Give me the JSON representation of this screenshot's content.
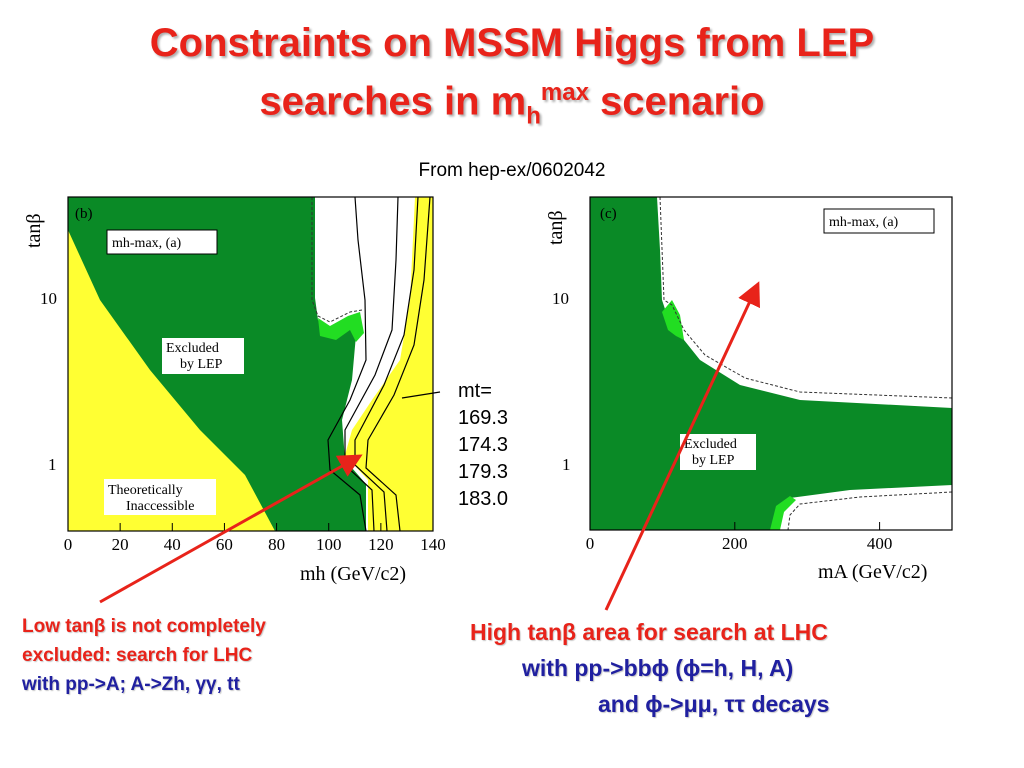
{
  "title": {
    "line1": "Constraints on MSSM Higgs from LEP",
    "line2_prefix": "searches in m",
    "line2_sub": "h",
    "line2_sup": "max",
    "line2_suffix": " scenario"
  },
  "source": "From hep-ex/0602042",
  "colors": {
    "excluded": "#0a8a26",
    "theory": "#ffff33",
    "accent": "#e8231a",
    "blue_text": "#2020a0",
    "bright_green": "#22dd22"
  },
  "chart_data": [
    {
      "type": "area",
      "panel": "(b)",
      "box_label": "mh-max, (a)",
      "xlabel": "mh (GeV/c2)",
      "ylabel": "tanβ",
      "xlim": [
        0,
        140
      ],
      "ylim_log": [
        0.4,
        60
      ],
      "x_ticks": [
        "0",
        "20",
        "40",
        "60",
        "80",
        "100",
        "120",
        "140"
      ],
      "y_ticks": [
        "10",
        "1"
      ],
      "regions": [
        {
          "name": "Excluded by LEP",
          "label_line1": "Excluded",
          "label_line2": "by LEP"
        },
        {
          "name": "Theoretically Inaccessible",
          "label_line1": "Theoretically",
          "label_line2": "Inaccessible"
        }
      ],
      "exclusion_boundary": {
        "x": [
          112,
          112,
          108,
          103,
          99,
          106,
          115,
          115
        ],
        "tanb": [
          0.4,
          1.2,
          1.5,
          2.2,
          2.6,
          3.1,
          8,
          60
        ]
      },
      "theory_boundary": {
        "x": [
          0,
          20,
          40,
          55,
          70,
          78
        ],
        "tanb": [
          12,
          4,
          1.8,
          1.1,
          0.6,
          0.4
        ]
      },
      "mt_curves_label": "mt=",
      "mt_values": [
        "169.3",
        "174.3",
        "179.3",
        "183.0"
      ]
    },
    {
      "type": "area",
      "panel": "(c)",
      "box_label": "mh-max, (a)",
      "xlabel": "mA (GeV/c2)",
      "ylabel": "tanβ",
      "xlim": [
        0,
        500
      ],
      "ylim_log": [
        0.4,
        60
      ],
      "x_ticks": [
        "0",
        "200",
        "400"
      ],
      "y_ticks": [
        "10",
        "1"
      ],
      "regions": [
        {
          "name": "Excluded by LEP",
          "label_line1": "Excluded",
          "label_line2": "by LEP"
        }
      ]
    }
  ],
  "notes": {
    "left_line1": "Low tanβ is not completely",
    "left_line2": "excluded: search for LHC",
    "left_line3": "with pp->A; A->Zh,  γγ, tt",
    "right_line1": "High tanβ area for search at LHC",
    "right_line2": "with pp->bbϕ (ϕ=h, H, A)",
    "right_line3": "and ϕ->μμ, ττ decays"
  }
}
